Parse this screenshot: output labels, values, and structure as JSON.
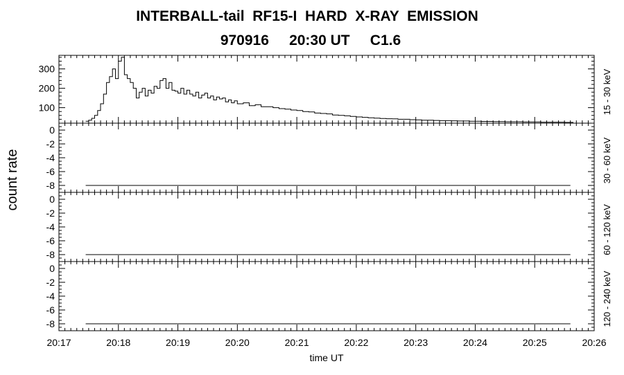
{
  "header": {
    "title": "INTERBALL-tail  RF15-I  HARD  X-RAY  EMISSION",
    "subtitle": "970916     20:30 UT     C1.6"
  },
  "chart_data": {
    "type": "line",
    "ylabel": "count rate",
    "xlabel": "time UT",
    "x_ticks": [
      "20:17",
      "20:18",
      "20:19",
      "20:20",
      "20:21",
      "20:22",
      "20:23",
      "20:24",
      "20:25",
      "20:26"
    ],
    "x_unit": "minutes after 20:17",
    "xlim": [
      0,
      9
    ],
    "panels": [
      {
        "band": "15 - 30 keV",
        "ylim": [
          20,
          370
        ],
        "y_ticks": [
          100,
          200,
          300
        ],
        "series": {
          "x": [
            0.45,
            0.5,
            0.55,
            0.6,
            0.65,
            0.7,
            0.75,
            0.8,
            0.85,
            0.9,
            0.95,
            1.0,
            1.05,
            1.1,
            1.15,
            1.2,
            1.25,
            1.3,
            1.35,
            1.4,
            1.45,
            1.5,
            1.55,
            1.6,
            1.65,
            1.7,
            1.75,
            1.8,
            1.85,
            1.9,
            1.95,
            2.0,
            2.05,
            2.1,
            2.15,
            2.2,
            2.25,
            2.3,
            2.35,
            2.4,
            2.45,
            2.5,
            2.55,
            2.6,
            2.65,
            2.7,
            2.75,
            2.8,
            2.85,
            2.9,
            2.95,
            3.0,
            3.1,
            3.2,
            3.3,
            3.4,
            3.5,
            3.6,
            3.7,
            3.8,
            3.9,
            4.0,
            4.1,
            4.2,
            4.3,
            4.4,
            4.5,
            4.6,
            4.7,
            4.8,
            4.9,
            5.0,
            5.1,
            5.2,
            5.3,
            5.4,
            5.5,
            5.6,
            5.7,
            5.8,
            5.9,
            6.0,
            6.1,
            6.2,
            6.3,
            6.4,
            6.5,
            6.6,
            6.7,
            6.8,
            6.9,
            7.0,
            7.1,
            7.2,
            7.3,
            7.4,
            7.5,
            7.6,
            7.7,
            7.8,
            7.9,
            8.0,
            8.1,
            8.2,
            8.3,
            8.4,
            8.5,
            8.6
          ],
          "y": [
            30,
            35,
            45,
            60,
            85,
            120,
            170,
            230,
            260,
            300,
            250,
            340,
            360,
            270,
            250,
            230,
            200,
            150,
            180,
            200,
            160,
            190,
            175,
            210,
            200,
            240,
            250,
            200,
            230,
            190,
            185,
            175,
            200,
            170,
            190,
            170,
            160,
            180,
            150,
            165,
            175,
            150,
            160,
            140,
            155,
            145,
            150,
            130,
            140,
            125,
            135,
            120,
            125,
            110,
            115,
            105,
            105,
            100,
            95,
            92,
            88,
            85,
            80,
            78,
            72,
            70,
            68,
            62,
            60,
            58,
            55,
            52,
            50,
            48,
            46,
            44,
            43,
            42,
            40,
            40,
            38,
            37,
            35,
            35,
            34,
            33,
            33,
            32,
            31,
            31,
            30,
            30,
            29,
            29,
            28,
            28,
            27,
            27,
            27,
            26,
            26,
            26,
            25,
            25,
            25,
            25,
            24,
            24
          ]
        }
      },
      {
        "band": "30 - 60 keV",
        "ylim": [
          -9,
          1
        ],
        "y_ticks": [
          -8,
          -6,
          -4,
          -2,
          0
        ],
        "series": {
          "x": [
            0.45,
            8.6
          ],
          "y": [
            -8,
            -8
          ]
        }
      },
      {
        "band": "60 - 120 keV",
        "ylim": [
          -9,
          1
        ],
        "y_ticks": [
          -8,
          -6,
          -4,
          -2,
          0
        ],
        "series": {
          "x": [
            0.45,
            8.6
          ],
          "y": [
            -8,
            -8
          ]
        }
      },
      {
        "band": "120 - 240 keV",
        "ylim": [
          -9,
          1
        ],
        "y_ticks": [
          -8,
          -6,
          -4,
          -2,
          0
        ],
        "series": {
          "x": [
            0.45,
            8.6
          ],
          "y": [
            -8,
            -8
          ]
        }
      }
    ]
  }
}
